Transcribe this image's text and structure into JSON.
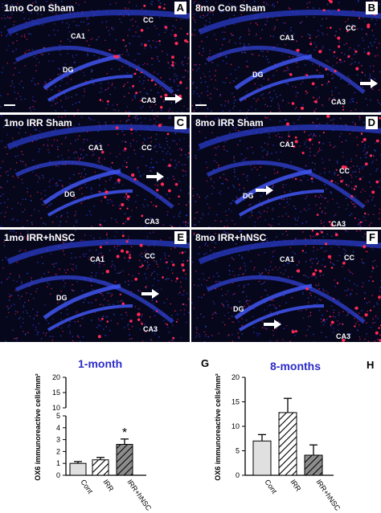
{
  "panels": [
    {
      "id": "A",
      "title": "1mo Con Sham",
      "letter": "A",
      "labels": [
        "CA1",
        "CC",
        "DG",
        "CA3"
      ]
    },
    {
      "id": "B",
      "title": "8mo Con Sham",
      "letter": "B",
      "labels": [
        "CA1",
        "CC",
        "DG",
        "CA3"
      ]
    },
    {
      "id": "C",
      "title": "1mo IRR Sham",
      "letter": "C",
      "labels": [
        "CA1",
        "CC",
        "DG",
        "CA3"
      ]
    },
    {
      "id": "D",
      "title": "8mo IRR Sham",
      "letter": "D",
      "labels": [
        "CA1",
        "CC",
        "DG",
        "CA3"
      ]
    },
    {
      "id": "E",
      "title": "1mo IRR+hNSC",
      "letter": "E",
      "labels": [
        "CA1",
        "CC",
        "DG",
        "CA3"
      ]
    },
    {
      "id": "F",
      "title": "8mo IRR+hNSC",
      "letter": "F",
      "labels": [
        "CA1",
        "CC",
        "DG",
        "CA3"
      ]
    }
  ],
  "chart_data": [
    {
      "type": "bar",
      "panel": "G",
      "title": "1-month",
      "ylabel": "OX6 immunoreactive cells/mm²",
      "categories": [
        "Cont",
        "IRR",
        "IRR+hNSC"
      ],
      "values": [
        1.0,
        1.3,
        2.6
      ],
      "errors": [
        0.15,
        0.2,
        0.45
      ],
      "significance": [
        "",
        "",
        "*"
      ],
      "ylim": [
        0,
        20
      ],
      "axis_break": [
        5,
        10
      ],
      "yticks": [
        0,
        1,
        2,
        3,
        4,
        5,
        10,
        15,
        20
      ]
    },
    {
      "type": "bar",
      "panel": "H",
      "title": "8-months",
      "ylabel": "OX6 immunoreactive cells/mm²",
      "categories": [
        "Cont",
        "IRR",
        "IRR+hNSC"
      ],
      "values": [
        7.0,
        12.8,
        4.1
      ],
      "errors": [
        1.3,
        2.9,
        2.1
      ],
      "ylim": [
        0,
        20
      ],
      "yticks": [
        0,
        5,
        10,
        15,
        20
      ]
    }
  ],
  "colors": {
    "cont": "#e0e0e0",
    "irr": "#ffffff",
    "hnsc": "#8c8c8c",
    "title": "#2b2bc8"
  }
}
